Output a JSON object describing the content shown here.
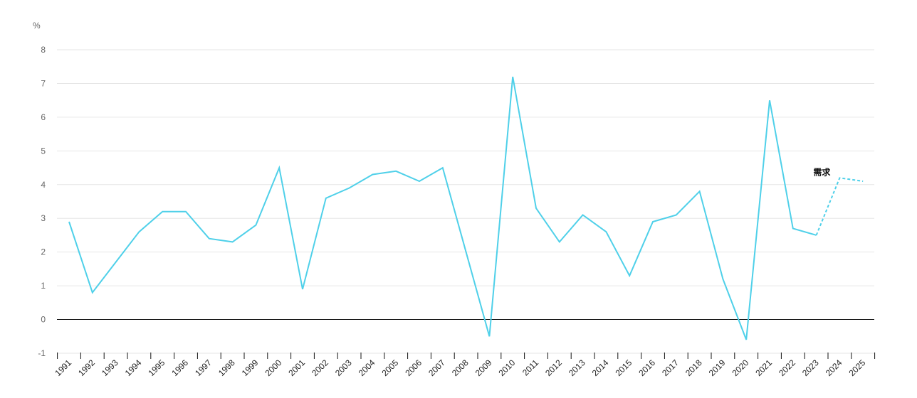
{
  "chart_data": {
    "type": "line",
    "ylabel": "%",
    "ylim": [
      -1,
      8
    ],
    "yticks": [
      "-1",
      "0",
      "1",
      "2",
      "3",
      "4",
      "5",
      "6",
      "7",
      "8"
    ],
    "categories": [
      "1991",
      "1992",
      "1993",
      "1994",
      "1995",
      "1996",
      "1997",
      "1998",
      "1999",
      "2000",
      "2001",
      "2002",
      "2003",
      "2004",
      "2005",
      "2006",
      "2007",
      "2008",
      "2009",
      "2010",
      "2011",
      "2012",
      "2013",
      "2014",
      "2015",
      "2016",
      "2017",
      "2018",
      "2019",
      "2020",
      "2021",
      "2022",
      "2023",
      "2024",
      "2025"
    ],
    "series": [
      {
        "values": [
          2.9,
          0.8,
          1.7,
          2.6,
          3.2,
          3.2,
          2.4,
          2.3,
          2.8,
          4.5,
          0.9,
          3.6,
          3.9,
          4.3,
          4.4,
          4.1,
          4.5,
          2.0,
          -0.5,
          7.2,
          3.3,
          2.3,
          3.1,
          2.6,
          1.3,
          2.9,
          3.1,
          3.8,
          1.2,
          -0.6,
          6.5,
          2.7,
          2.5,
          4.2,
          4.1
        ],
        "color": "#4fd0e9",
        "forecast_from": "2023"
      }
    ],
    "annotation": {
      "text": "需求",
      "at": "2024"
    },
    "grid": true,
    "zero_line": true
  }
}
